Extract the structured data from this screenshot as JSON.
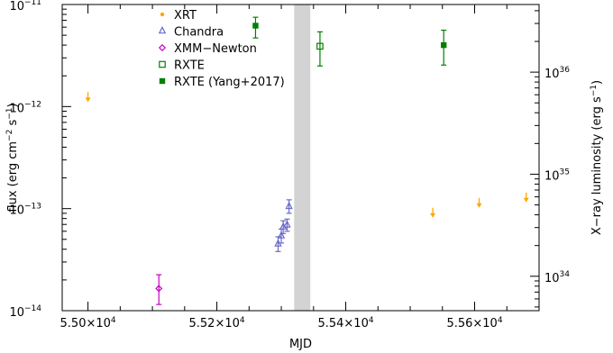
{
  "chart_data": {
    "type": "scatter",
    "xlabel": "MJD",
    "ylabel_left": {
      "main": "flux (erg cm",
      "sup1": "−2",
      "mid": " s",
      "sup2": "−1",
      "end": ")"
    },
    "ylabel_right": {
      "main": "X−ray luminosity  (erg s",
      "sup": "−1",
      "end": ")"
    },
    "x_scale": "linear",
    "xlim": [
      54960,
      55700
    ],
    "y_scale": "log",
    "ylim": [
      1e-14,
      1e-11
    ],
    "x_ticks": [
      {
        "value": 55000,
        "mantissa": "5.50×10",
        "exp": "4"
      },
      {
        "value": 55200,
        "mantissa": "5.52×10",
        "exp": "4"
      },
      {
        "value": 55400,
        "mantissa": "5.54×10",
        "exp": "4"
      },
      {
        "value": 55600,
        "mantissa": "5.56×10",
        "exp": "4"
      }
    ],
    "y_ticks_left": [
      {
        "value": 1e-14,
        "base": "10",
        "exp": "−14"
      },
      {
        "value": 1e-13,
        "base": "10",
        "exp": "−13"
      },
      {
        "value": 1e-12,
        "base": "10",
        "exp": "−12"
      },
      {
        "value": 1e-11,
        "base": "10",
        "exp": "−11"
      }
    ],
    "luminosity_per_flux": 4.6e+47,
    "y_ticks_right": [
      {
        "value": 1e+34,
        "base": "10",
        "exp": "34"
      },
      {
        "value": 1e+35,
        "base": "10",
        "exp": "35"
      },
      {
        "value": 1e+36,
        "base": "10",
        "exp": "36"
      }
    ],
    "shaded_region": {
      "x_range": [
        55320,
        55345
      ],
      "color": "#d3d3d3"
    },
    "series": [
      {
        "name": "XRT",
        "marker": "filled-circle",
        "color": "#ffa500",
        "points": [
          {
            "x": 55000,
            "y": 1.25e-12,
            "upper_limit": true
          },
          {
            "x": 55535,
            "y": 9.2e-14,
            "upper_limit": true
          },
          {
            "x": 55607,
            "y": 1.15e-13,
            "upper_limit": true
          },
          {
            "x": 55680,
            "y": 1.3e-13,
            "upper_limit": true
          }
        ]
      },
      {
        "name": "Chandra",
        "marker": "open-triangle",
        "color": "#6a6ac8",
        "points": [
          {
            "x": 55295,
            "y": 4.5e-14,
            "err": [
              3.8e-14,
              5.3e-14
            ]
          },
          {
            "x": 55300,
            "y": 5.4e-14,
            "err": [
              4.6e-14,
              6.3e-14
            ]
          },
          {
            "x": 55303,
            "y": 6.6e-14,
            "err": [
              5.7e-14,
              7.6e-14
            ]
          },
          {
            "x": 55309,
            "y": 6.9e-14,
            "err": [
              6e-14,
              7.9e-14
            ]
          },
          {
            "x": 55312,
            "y": 1.05e-13,
            "err": [
              9e-14,
              1.22e-13
            ]
          }
        ]
      },
      {
        "name": "XMM−Newton",
        "marker": "open-diamond",
        "color": "#c800c8",
        "points": [
          {
            "x": 55110,
            "y": 1.65e-14,
            "err": [
              1.15e-14,
              2.25e-14
            ]
          }
        ]
      },
      {
        "name": "RXTE",
        "marker": "open-square",
        "color": "#008000",
        "points": [
          {
            "x": 55360,
            "y": 3.9e-12,
            "err": [
              2.5e-12,
              5.4e-12
            ]
          }
        ]
      },
      {
        "name": "RXTE (Yang+2017)",
        "marker": "filled-square",
        "color": "#008000",
        "points": [
          {
            "x": 55260,
            "y": 6.2e-12,
            "err": [
              4.7e-12,
              7.5e-12
            ]
          },
          {
            "x": 55552,
            "y": 4e-12,
            "err": [
              2.55e-12,
              5.6e-12
            ]
          }
        ]
      }
    ],
    "legend_position": "top-left"
  }
}
